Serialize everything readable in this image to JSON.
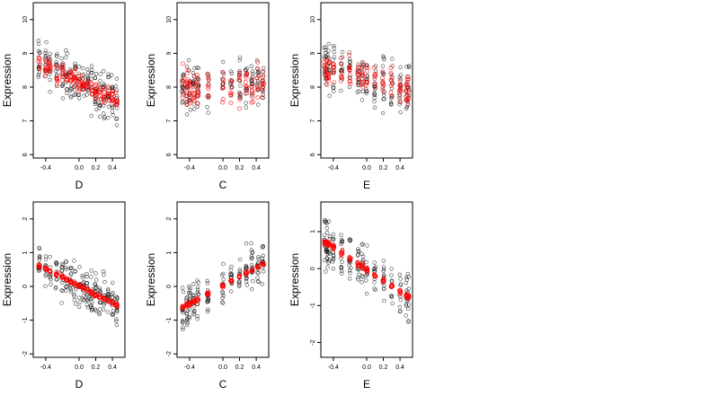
{
  "figure": {
    "colors": {
      "observed": "#000000",
      "fitted": "#ff0000"
    }
  },
  "chart_data": [
    {
      "type": "scatter",
      "xlabel": "D",
      "ylabel": "Expression",
      "xlim": [
        -0.55,
        0.55
      ],
      "ylim": [
        5.9,
        10.5
      ],
      "xticks": [
        -0.4,
        0.0,
        0.2,
        0.4
      ],
      "xticklabels": [
        "-0.4",
        "0.0",
        "0.2",
        "0.4"
      ],
      "yticks": [
        6,
        7,
        8,
        9,
        10
      ],
      "yticklabels": [
        "6",
        "7",
        "8",
        "9",
        "10"
      ],
      "x_groups": [
        -0.48,
        -0.4,
        -0.35,
        -0.27,
        -0.2,
        -0.15,
        -0.1,
        -0.05,
        0.0,
        0.05,
        0.1,
        0.15,
        0.2,
        0.25,
        0.3,
        0.35,
        0.4,
        0.45
      ],
      "fitted_line": [
        [
          -0.5,
          8.75
        ],
        [
          0.5,
          7.55
        ]
      ],
      "observed_spread": 0.6,
      "fitted_spread": 0.25
    },
    {
      "type": "scatter",
      "xlabel": "C",
      "ylabel": "Expression",
      "xlim": [
        -0.55,
        0.55
      ],
      "ylim": [
        5.9,
        10.5
      ],
      "xticks": [
        -0.4,
        0.0,
        0.2,
        0.4
      ],
      "xticklabels": [
        "-0.4",
        "0.0",
        "0.2",
        "0.4"
      ],
      "yticks": [
        6,
        7,
        8,
        9,
        10
      ],
      "yticklabels": [
        "6",
        "7",
        "8",
        "9",
        "10"
      ],
      "x_groups": [
        -0.48,
        -0.43,
        -0.4,
        -0.35,
        -0.3,
        -0.18,
        0.0,
        0.1,
        0.2,
        0.28,
        0.35,
        0.42,
        0.48
      ],
      "fitted_line": [
        [
          -0.5,
          7.95
        ],
        [
          0.5,
          8.1
        ]
      ],
      "observed_spread": 0.65,
      "fitted_spread": 0.55
    },
    {
      "type": "scatter",
      "xlabel": "E",
      "ylabel": "Expression",
      "xlim": [
        -0.55,
        0.55
      ],
      "ylim": [
        5.9,
        10.5
      ],
      "xticks": [
        -0.4,
        0.0,
        0.2,
        0.4
      ],
      "xticklabels": [
        "-0.4",
        "0.0",
        "0.2",
        "0.4"
      ],
      "yticks": [
        6,
        7,
        8,
        9,
        10
      ],
      "yticklabels": [
        "6",
        "7",
        "8",
        "9",
        "10"
      ],
      "x_groups": [
        -0.5,
        -0.48,
        -0.45,
        -0.4,
        -0.3,
        -0.2,
        -0.1,
        -0.05,
        0.0,
        0.1,
        0.2,
        0.3,
        0.4,
        0.48,
        0.5
      ],
      "fitted_line": [
        [
          -0.5,
          8.6
        ],
        [
          0.5,
          7.9
        ]
      ],
      "observed_spread": 0.65,
      "fitted_spread": 0.45
    },
    {
      "type": "scatter",
      "xlabel": "D",
      "ylabel": "Expression",
      "xlim": [
        -0.55,
        0.55
      ],
      "ylim": [
        -2.1,
        2.5
      ],
      "xticks": [
        -0.4,
        0.0,
        0.2,
        0.4
      ],
      "xticklabels": [
        "-0.4",
        "0.0",
        "0.2",
        "0.4"
      ],
      "yticks": [
        -2,
        -1,
        0,
        1,
        2
      ],
      "yticklabels": [
        "-2",
        "-1",
        "0",
        "1",
        "2"
      ],
      "x_groups": [
        -0.48,
        -0.4,
        -0.35,
        -0.27,
        -0.2,
        -0.15,
        -0.1,
        -0.05,
        0.0,
        0.05,
        0.1,
        0.15,
        0.2,
        0.25,
        0.3,
        0.35,
        0.4,
        0.45
      ],
      "fitted_line": [
        [
          -0.5,
          0.65
        ],
        [
          0.5,
          -0.62
        ]
      ],
      "observed_spread": 0.55,
      "fitted_spread": 0.04
    },
    {
      "type": "scatter",
      "xlabel": "C",
      "ylabel": "Expression",
      "xlim": [
        -0.55,
        0.55
      ],
      "ylim": [
        -2.1,
        2.5
      ],
      "xticks": [
        -0.4,
        0.0,
        0.2,
        0.4
      ],
      "xticklabels": [
        "-0.4",
        "0.0",
        "0.2",
        "0.4"
      ],
      "yticks": [
        -2,
        -1,
        0,
        1,
        2
      ],
      "yticklabels": [
        "-2",
        "-1",
        "0",
        "1",
        "2"
      ],
      "x_groups": [
        -0.48,
        -0.43,
        -0.4,
        -0.35,
        -0.3,
        -0.18,
        0.0,
        0.1,
        0.2,
        0.28,
        0.35,
        0.42,
        0.48
      ],
      "fitted_line": [
        [
          -0.5,
          -0.65
        ],
        [
          0.5,
          0.68
        ]
      ],
      "observed_spread": 0.6,
      "fitted_spread": 0.04
    },
    {
      "type": "scatter",
      "xlabel": "E",
      "ylabel": "Expression",
      "xlim": [
        -0.55,
        0.55
      ],
      "ylim": [
        -2.4,
        1.8
      ],
      "xticks": [
        -0.4,
        0.0,
        0.2,
        0.4
      ],
      "xticklabels": [
        "-0.4",
        "0.0",
        "0.2",
        "0.4"
      ],
      "yticks": [
        -2,
        -1,
        0,
        1
      ],
      "yticklabels": [
        "-2",
        "-1",
        "0",
        "1"
      ],
      "x_groups": [
        -0.5,
        -0.48,
        -0.45,
        -0.4,
        -0.3,
        -0.2,
        -0.1,
        -0.05,
        0.0,
        0.1,
        0.2,
        0.3,
        0.4,
        0.48,
        0.5
      ],
      "fitted_line": [
        [
          -0.5,
          0.72
        ],
        [
          0.5,
          -0.78
        ]
      ],
      "observed_spread": 0.6,
      "fitted_spread": 0.06
    }
  ]
}
